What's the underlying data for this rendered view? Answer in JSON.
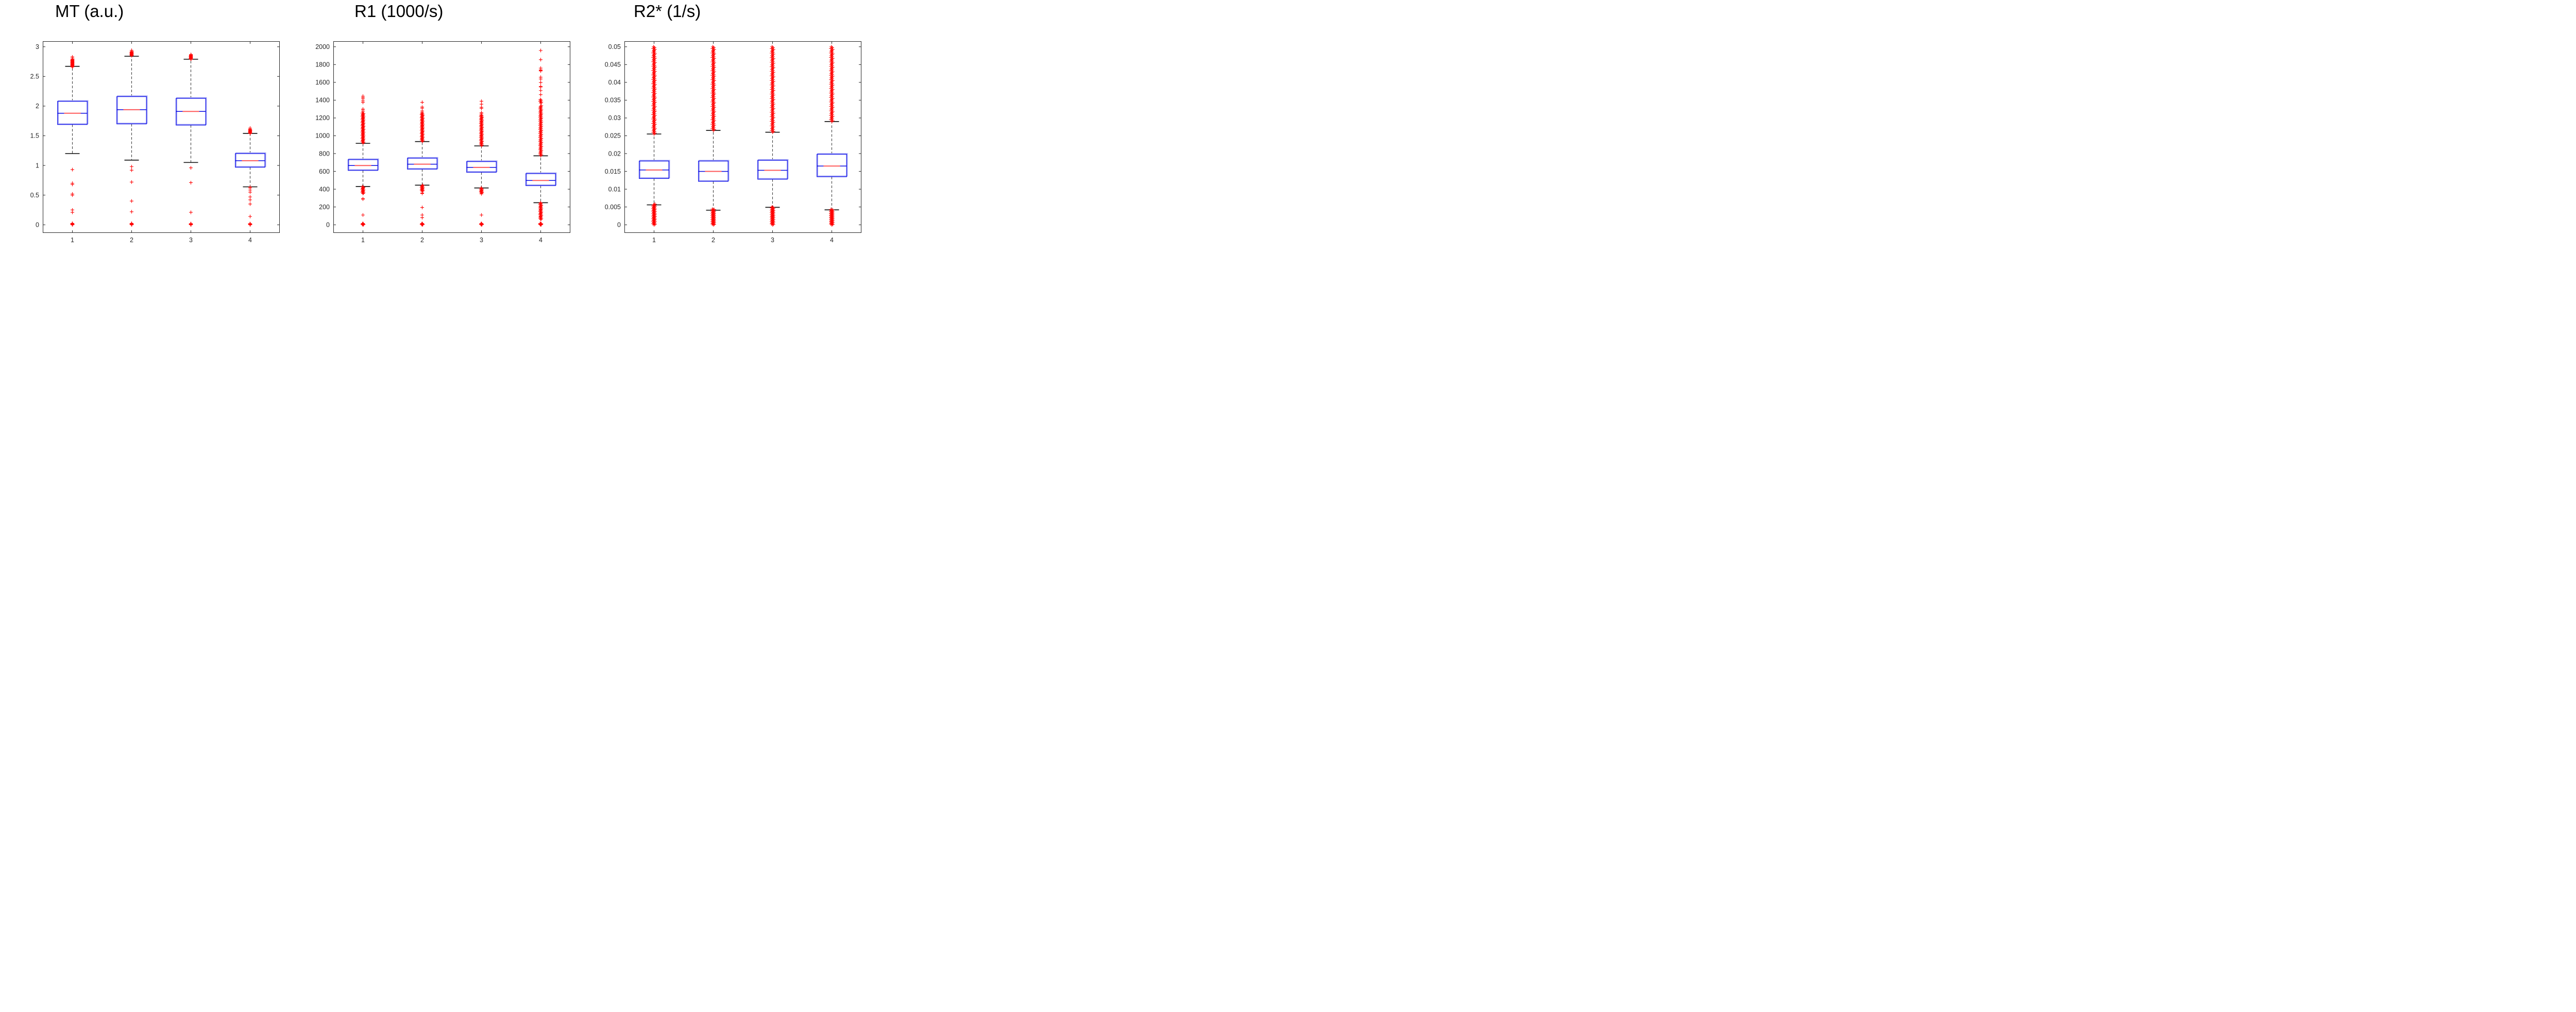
{
  "style": {
    "background": "#ffffff",
    "axis_color": "#262626",
    "tick_label_color": "#262626",
    "title_color": "#000000",
    "box_border_color": "#1518e8",
    "box_halo_color": "#a0a2f5",
    "median_blue_color": "#0a0ae0",
    "median_red_color": "#ff5a5a",
    "whisker_color": "#3c3c3c",
    "cap_color": "#1a1a1a",
    "outlier_color": "#ff0000"
  },
  "chart_data": [
    {
      "type": "box",
      "title": "MT (a.u.)",
      "x_tick_labels": [
        "1",
        "2",
        "3",
        "4"
      ],
      "y_tick_values": [
        0,
        0.5,
        1,
        1.5,
        2,
        2.5,
        3
      ],
      "y_tick_labels": [
        "0",
        "0.5",
        "1",
        "1.5",
        "2",
        "2.5",
        "3"
      ],
      "y_max_tick": 3,
      "ylim": [
        -0.137,
        3.093
      ],
      "jitter": 0.5,
      "boxes": [
        {
          "position": 1,
          "q1": 1.69,
          "median": 1.88,
          "q3": 2.08,
          "whisker_low": 1.2,
          "whisker_high": 2.67,
          "outliers": [
            2.81,
            2.83,
            0.93,
            0.7,
            0.68,
            0.52,
            0.5,
            0.25,
            0.21
          ],
          "outlier_runs": [
            [
              2.66,
              2.79,
              22
            ],
            [
              0,
              0.025,
              6
            ]
          ]
        },
        {
          "position": 2,
          "q1": 1.7,
          "median": 1.94,
          "q3": 2.16,
          "whisker_low": 1.09,
          "whisker_high": 2.84,
          "outliers": [
            2.94,
            0.98,
            0.92,
            0.72,
            0.4,
            0.22
          ],
          "outlier_runs": [
            [
              2.85,
              2.92,
              12
            ],
            [
              0,
              0.025,
              6
            ]
          ]
        },
        {
          "position": 3,
          "q1": 1.68,
          "median": 1.91,
          "q3": 2.13,
          "whisker_low": 1.05,
          "whisker_high": 2.79,
          "outliers": [
            2.87,
            0.96,
            0.71,
            0.21
          ],
          "outlier_runs": [
            [
              2.79,
              2.86,
              12
            ],
            [
              0,
              0.02,
              6
            ]
          ]
        },
        {
          "position": 4,
          "q1": 0.97,
          "median": 1.08,
          "q3": 1.2,
          "whisker_low": 0.64,
          "whisker_high": 1.54,
          "outliers": [
            1.63,
            0.635,
            0.62,
            0.585,
            0.55,
            0.47,
            0.42,
            0.35,
            0.14
          ],
          "outlier_runs": [
            [
              1.54,
              1.61,
              10
            ],
            [
              0,
              0.02,
              5
            ]
          ]
        }
      ]
    },
    {
      "type": "box",
      "title": "R1 (1000/s)",
      "x_tick_labels": [
        "1",
        "2",
        "3",
        "4"
      ],
      "y_tick_values": [
        0,
        200,
        400,
        600,
        800,
        1000,
        1200,
        1400,
        1600,
        1800,
        2000
      ],
      "y_tick_labels": [
        "0",
        "200",
        "400",
        "600",
        "800",
        "1000",
        "1200",
        "1400",
        "1600",
        "1800",
        "2000"
      ],
      "y_max_tick": 2000,
      "ylim": [
        -91,
        2062
      ],
      "jitter": 1.2,
      "boxes": [
        {
          "position": 1,
          "q1": 611,
          "median": 666,
          "q3": 732,
          "whisker_low": 430,
          "whisker_high": 915,
          "outliers": [
            1270,
            1288,
            1300,
            1375,
            1392,
            1415,
            1430,
            1445,
            293,
            288,
            110
          ],
          "outlier_runs": [
            [
              920,
              1255,
              48
            ],
            [
              352,
              428,
              13
            ],
            [
              0,
              15,
              6
            ]
          ]
        },
        {
          "position": 2,
          "q1": 625,
          "median": 681,
          "q3": 748,
          "whisker_low": 445,
          "whisker_high": 935,
          "outliers": [
            1265,
            1280,
            1310,
            1323,
            1376,
            357,
            352,
            195,
            110,
            80
          ],
          "outlier_runs": [
            [
              938,
              1252,
              45
            ],
            [
              378,
              443,
              12
            ],
            [
              0,
              15,
              6
            ]
          ]
        },
        {
          "position": 3,
          "q1": 590,
          "median": 645,
          "q3": 710,
          "whisker_low": 414,
          "whisker_high": 886,
          "outliers": [
            1247,
            1260,
            1308,
            1320,
            1355,
            1388,
            347,
            110
          ],
          "outlier_runs": [
            [
              890,
              1232,
              45
            ],
            [
              357,
              412,
              10
            ],
            [
              0,
              15,
              6
            ]
          ]
        },
        {
          "position": 4,
          "q1": 440,
          "median": 498,
          "q3": 575,
          "whisker_low": 248,
          "whisker_high": 775,
          "outliers": [
            1462,
            1508,
            1548,
            1555,
            1598,
            1638,
            1658,
            1728,
            1733,
            1740,
            1760,
            1855,
            1958
          ],
          "outlier_runs": [
            [
              778,
              1338,
              62
            ],
            [
              1368,
              1408,
              5
            ],
            [
              60,
              248,
              26
            ],
            [
              0,
              15,
              8
            ]
          ]
        }
      ]
    },
    {
      "type": "box",
      "title": "R2* (1/s)",
      "x_tick_labels": [
        "1",
        "2",
        "3",
        "4"
      ],
      "y_tick_values": [
        0,
        0.005,
        0.01,
        0.015,
        0.02,
        0.025,
        0.03,
        0.035,
        0.04,
        0.045,
        0.05
      ],
      "y_tick_labels": [
        "0",
        "0.005",
        "0.01",
        "0.015",
        "0.02",
        "0.025",
        "0.03",
        "0.035",
        "0.04",
        "0.045",
        "0.05"
      ],
      "y_max_tick": 0.05,
      "ylim": [
        -0.00228,
        0.05155
      ],
      "jitter": 1.8,
      "boxes": [
        {
          "position": 1,
          "q1": 0.013,
          "median": 0.0154,
          "q3": 0.0179,
          "whisker_low": 0.0056,
          "whisker_high": 0.0255,
          "outliers": [],
          "outlier_runs": [
            [
              0.0255,
              0.05,
              100
            ],
            [
              0.0,
              0.0058,
              42
            ]
          ]
        },
        {
          "position": 2,
          "q1": 0.0122,
          "median": 0.015,
          "q3": 0.0179,
          "whisker_low": 0.0041,
          "whisker_high": 0.0265,
          "outliers": [],
          "outlier_runs": [
            [
              0.0265,
              0.05,
              95
            ],
            [
              0.0,
              0.0044,
              38
            ]
          ]
        },
        {
          "position": 3,
          "q1": 0.0128,
          "median": 0.0153,
          "q3": 0.0181,
          "whisker_low": 0.0049,
          "whisker_high": 0.026,
          "outliers": [],
          "outlier_runs": [
            [
              0.026,
              0.05,
              95
            ],
            [
              0.0,
              0.005,
              40
            ]
          ]
        },
        {
          "position": 4,
          "q1": 0.0135,
          "median": 0.0165,
          "q3": 0.0198,
          "whisker_low": 0.0042,
          "whisker_high": 0.029,
          "outliers": [],
          "outlier_runs": [
            [
              0.029,
              0.05,
              85
            ],
            [
              0.0,
              0.0043,
              38
            ]
          ]
        }
      ]
    }
  ]
}
